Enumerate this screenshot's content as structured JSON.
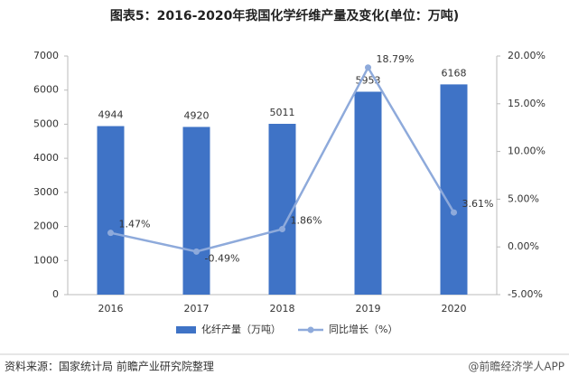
{
  "chart_data": {
    "type": "bar-line",
    "title": "图表5：2016-2020年我国化学纤维产量及变化(单位：万吨)",
    "categories": [
      "2016",
      "2017",
      "2018",
      "2019",
      "2020"
    ],
    "series": [
      {
        "name": "化纤产量（万吨）",
        "type": "bar",
        "color": "#3f73c6",
        "values": [
          4944,
          4920,
          5011,
          5953,
          6168
        ]
      },
      {
        "name": "同比增长（%）",
        "type": "line",
        "axis": "y2",
        "color": "#8eaadb",
        "values": [
          1.47,
          -0.49,
          1.86,
          18.79,
          3.61
        ],
        "value_labels": [
          "1.47%",
          "-0.49%",
          "1.86%",
          "18.79%",
          "3.61%"
        ]
      }
    ],
    "ylim": [
      0,
      7000
    ],
    "yticks": [
      0,
      1000,
      2000,
      3000,
      4000,
      5000,
      6000,
      7000
    ],
    "y2lim": [
      -5,
      20
    ],
    "y2ticks": [
      {
        "value": -5,
        "label": "-5.00%"
      },
      {
        "value": 0,
        "label": "0.00%"
      },
      {
        "value": 5,
        "label": "5.00%"
      },
      {
        "value": 10,
        "label": "10.00%"
      },
      {
        "value": 15,
        "label": "15.00%"
      },
      {
        "value": 20,
        "label": "20.00%"
      }
    ],
    "source": "资料来源：国家统计局 前瞻产业研究院整理",
    "credit": "@前瞻经济学人APP"
  }
}
